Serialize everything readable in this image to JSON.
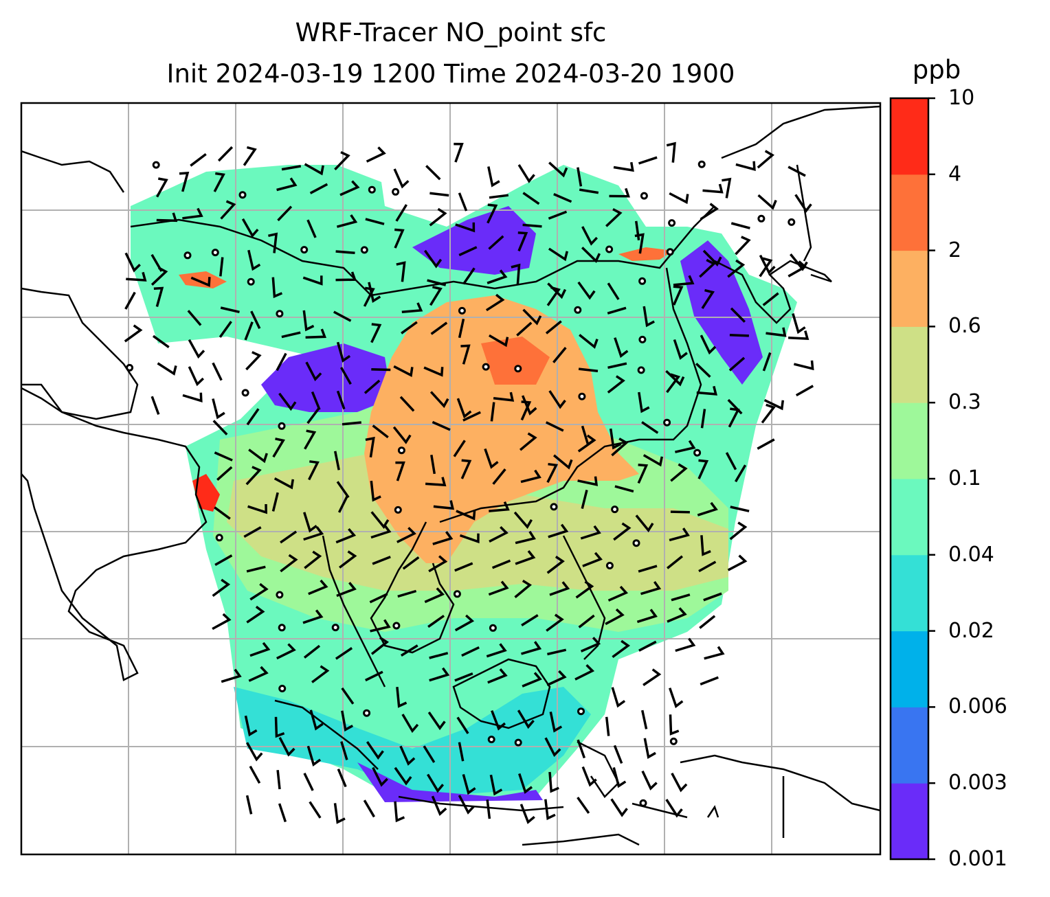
{
  "title": {
    "line1": "WRF-Tracer NO_point sfc",
    "line2": "Init 2024-03-19 1200 Time 2024-03-20 1900"
  },
  "colorbar": {
    "units": "ppb",
    "tick_labels": [
      "0.001",
      "0.003",
      "0.006",
      "0.02",
      "0.04",
      "0.1",
      "0.3",
      "0.6",
      "2",
      "4",
      "10"
    ],
    "colors": [
      "#6a2cf9",
      "#3975f1",
      "#00b1ea",
      "#34e0d6",
      "#6bf9be",
      "#9ef89a",
      "#cee086",
      "#fdb061",
      "#fe7139",
      "#ff2b18"
    ]
  },
  "map": {
    "land_outline_color": "#000000",
    "grid_color": "#b0b0b0",
    "wind_barb_color": "#000000",
    "field_colors": {
      "background_mid": "#9ef89a",
      "high_core": "#fdb061",
      "moderate": "#cee086",
      "low": "#6bf9be",
      "very_low": "#34e0d6",
      "minimum": "#6a2cf9",
      "hotspot": "#ff2b18"
    }
  }
}
